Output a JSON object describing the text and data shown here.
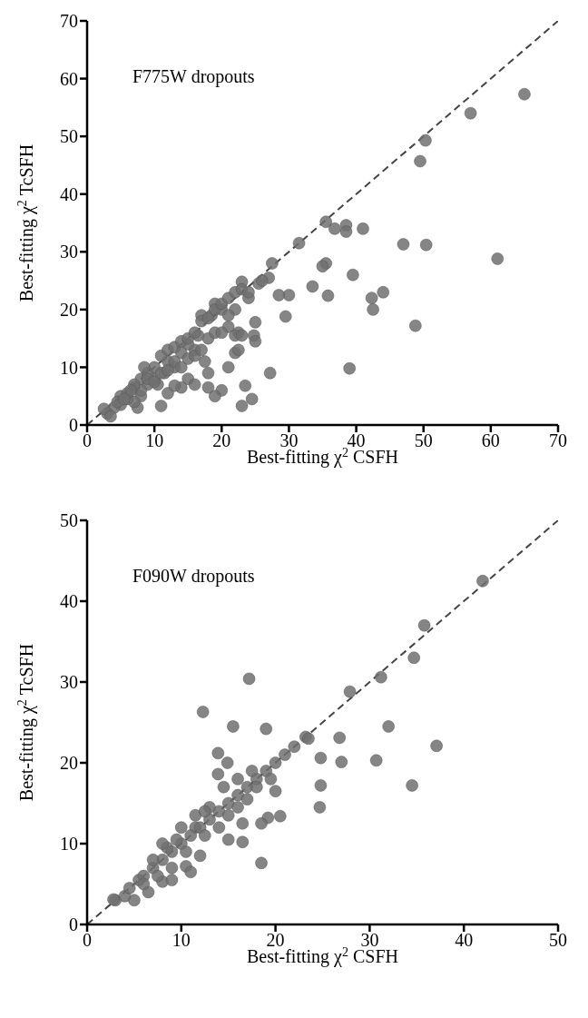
{
  "chart_data": [
    {
      "type": "scatter",
      "xlabel": "Best-fitting χ$^{2}$ CSFH",
      "ylabel": "Best-fitting χ$^{2}$ TcSFH",
      "annotations": [
        "F775W dropouts"
      ],
      "xlim": [
        0,
        70
      ],
      "ylim": [
        0,
        70
      ],
      "xticks": [
        0,
        10,
        20,
        30,
        40,
        50,
        60,
        70
      ],
      "yticks": [
        0,
        10,
        20,
        30,
        40,
        50,
        60,
        70
      ],
      "series": [
        {
          "type": "scatter",
          "color": "#707070",
          "marker": "circle",
          "x": [
            65,
            57,
            50.3,
            49.5,
            61,
            48.8,
            39,
            50.4,
            47,
            42.3,
            42.5,
            44,
            39.5,
            41,
            38.5,
            38.5,
            36.8,
            35.5,
            35.5,
            35.8,
            35,
            33.5,
            31.5,
            30,
            29.5,
            28.5,
            27,
            27.5,
            27.2,
            25.5,
            26,
            24.8,
            25,
            25,
            23.5,
            24.5,
            23,
            22,
            22.5,
            22.5,
            21,
            20,
            19,
            18,
            18,
            17.5,
            21,
            20,
            22,
            23,
            24,
            18,
            18.5,
            19,
            17,
            16.5,
            16,
            15,
            14,
            15,
            16,
            14,
            13,
            12,
            11.5,
            11,
            10.5,
            12,
            13,
            10,
            9,
            8,
            7.5,
            7,
            6,
            5,
            4,
            3,
            2.5,
            3.5,
            5,
            6,
            7,
            8,
            9,
            10,
            11,
            12,
            13,
            14,
            15,
            16,
            17,
            18,
            19,
            20,
            21,
            22,
            23,
            24,
            8,
            9,
            10,
            11,
            12,
            13,
            14,
            15,
            16,
            17,
            19,
            20,
            22,
            23,
            21,
            7,
            6.5,
            4.5,
            5.5,
            8.5
          ],
          "values": [
            57.3,
            54,
            49.3,
            45.7,
            28.8,
            17.2,
            9.8,
            31.2,
            31.3,
            22,
            20,
            23,
            26,
            34,
            34.6,
            33.5,
            34,
            35.2,
            28,
            22.4,
            27.5,
            24,
            31.5,
            22.5,
            18.8,
            22.5,
            25.5,
            28,
            9,
            24.5,
            25,
            15.5,
            17.8,
            14.5,
            6.8,
            4.5,
            3.3,
            12.5,
            13,
            16,
            10,
            6,
            5,
            6.5,
            9,
            11,
            17,
            20,
            20,
            24.8,
            22,
            15,
            19,
            21,
            19,
            15.5,
            13,
            14,
            12.5,
            8,
            7,
            6.5,
            10,
            11,
            9,
            3.3,
            7,
            5.5,
            6.8,
            8,
            7,
            5,
            3,
            4,
            4.5,
            3.5,
            3,
            2,
            2.8,
            1.5,
            5,
            5.5,
            6.5,
            8,
            9,
            10,
            12,
            13,
            13.5,
            14.5,
            15,
            16,
            18,
            18.5,
            20,
            21,
            22,
            23,
            23.5,
            23,
            6,
            8,
            7.5,
            9,
            9.5,
            11,
            10,
            11.5,
            12,
            13,
            16,
            16,
            15.5,
            15.5,
            19,
            7,
            6,
            4,
            4.5,
            10
          ]
        },
        {
          "type": "line",
          "color": "#444444",
          "line_style": "dashed",
          "marker": "none",
          "x": [
            0,
            70
          ],
          "values": [
            0,
            70
          ]
        }
      ]
    },
    {
      "type": "scatter",
      "xlabel": "Best-fitting χ$^{2}$ CSFH",
      "ylabel": "Best-fitting χ$^{2}$ TcSFH",
      "annotations": [
        "F090W dropouts"
      ],
      "xlim": [
        0,
        50
      ],
      "ylim": [
        0,
        50
      ],
      "xticks": [
        0,
        10,
        20,
        30,
        40,
        50
      ],
      "yticks": [
        0,
        10,
        20,
        30,
        40,
        50
      ],
      "series": [
        {
          "type": "scatter",
          "color": "#707070",
          "marker": "circle",
          "x": [
            42,
            35.8,
            34.7,
            31.2,
            27.9,
            17.2,
            12.3,
            15.5,
            19,
            23.2,
            23.5,
            24.8,
            24.8,
            24.7,
            26.8,
            27,
            30.7,
            32,
            37.1,
            34.5,
            20.5,
            18.5,
            13.9,
            13.9,
            14.9,
            11.5,
            10.5,
            8,
            6.5,
            5,
            3,
            2.8,
            4,
            4.5,
            5.5,
            6,
            7,
            7.5,
            8,
            8.5,
            9,
            10,
            11,
            12,
            13,
            14,
            15,
            16,
            17,
            18,
            19,
            20,
            21,
            22,
            9.5,
            10.5,
            12.5,
            13,
            14,
            15,
            16,
            17,
            18,
            19.5,
            20,
            16.5,
            15,
            16.5,
            19.2,
            18.5,
            12,
            11,
            9,
            8,
            7,
            6,
            10,
            11.5,
            14.5,
            16,
            17.5,
            12.5,
            9
          ],
          "values": [
            42.5,
            37,
            33,
            30.6,
            28.8,
            30.4,
            26.3,
            24.5,
            24.2,
            23.2,
            23,
            20.6,
            17.2,
            14.5,
            23.1,
            20.1,
            20.3,
            24.5,
            22.1,
            17.2,
            13.4,
            7.6,
            21.2,
            18.6,
            20,
            12,
            7.2,
            5.3,
            4,
            3,
            3,
            3.1,
            3.5,
            4.5,
            5.5,
            6,
            7,
            6,
            8,
            9.5,
            9,
            10,
            11,
            12,
            13,
            14,
            15,
            16,
            17,
            18,
            19,
            20,
            21,
            22,
            10.5,
            9,
            11,
            14.5,
            12,
            13.5,
            14.5,
            15.5,
            17,
            18,
            16.5,
            12.5,
            10.5,
            10.2,
            13.2,
            12.5,
            8.5,
            6.5,
            5.5,
            10,
            8,
            5,
            12,
            13.5,
            17,
            18,
            19,
            14,
            7
          ]
        },
        {
          "type": "line",
          "color": "#444444",
          "line_style": "dashed",
          "marker": "none",
          "x": [
            0,
            50
          ],
          "values": [
            0,
            50
          ]
        }
      ]
    }
  ]
}
